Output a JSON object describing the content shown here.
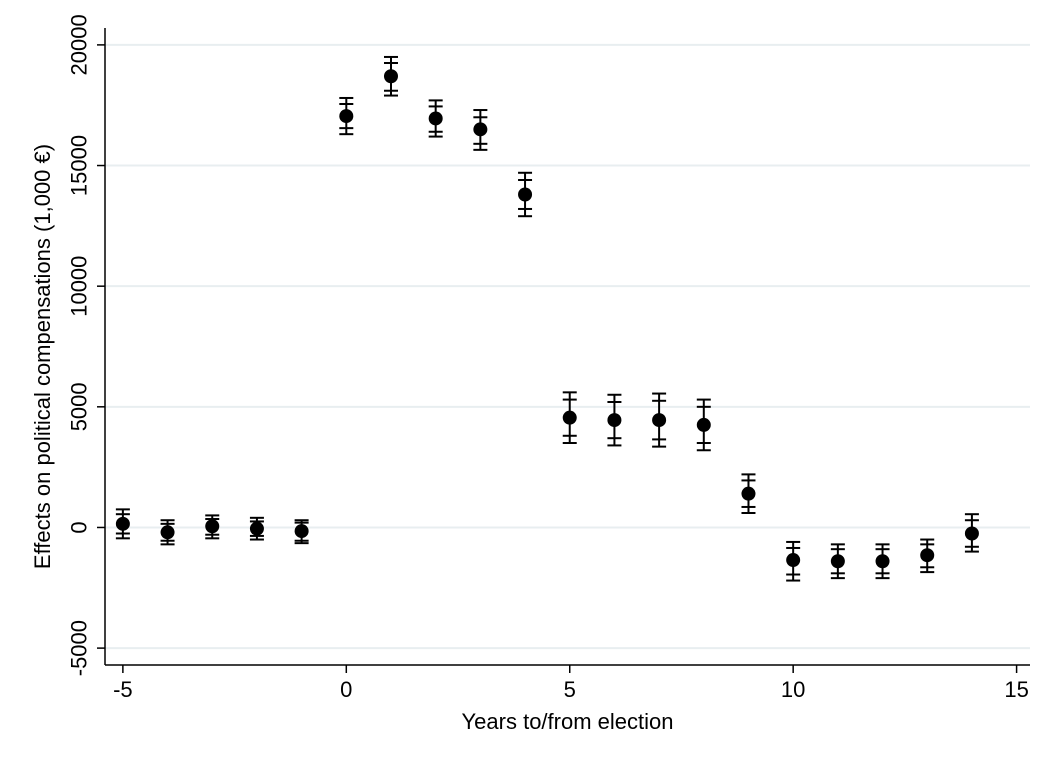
{
  "chart_data": {
    "type": "scatter",
    "title": "",
    "xlabel": "Years to/from election",
    "ylabel": "Effects on political compensations (1,000 €)",
    "xlim": [
      -5.4,
      15.3
    ],
    "ylim": [
      -5700,
      20700
    ],
    "xticks": [
      "-5",
      "0",
      "5",
      "10",
      "15"
    ],
    "yticks": [
      "-5000",
      "0",
      "5000",
      "10000",
      "15000",
      "20000"
    ],
    "grid": true,
    "points": [
      {
        "x": -5,
        "y": 150,
        "ci_inner": [
          -250,
          550
        ],
        "ci_outer": [
          -450,
          750
        ]
      },
      {
        "x": -4,
        "y": -200,
        "ci_inner": [
          -550,
          150
        ],
        "ci_outer": [
          -700,
          300
        ]
      },
      {
        "x": -3,
        "y": 50,
        "ci_inner": [
          -300,
          350
        ],
        "ci_outer": [
          -450,
          500
        ]
      },
      {
        "x": -2,
        "y": -50,
        "ci_inner": [
          -350,
          250
        ],
        "ci_outer": [
          -500,
          400
        ]
      },
      {
        "x": -1,
        "y": -150,
        "ci_inner": [
          -550,
          200
        ],
        "ci_outer": [
          -650,
          300
        ]
      },
      {
        "x": 0,
        "y": 17050,
        "ci_inner": [
          16550,
          17550
        ],
        "ci_outer": [
          16300,
          17800
        ]
      },
      {
        "x": 1,
        "y": 18700,
        "ci_inner": [
          18100,
          19250
        ],
        "ci_outer": [
          17900,
          19500
        ]
      },
      {
        "x": 2,
        "y": 16950,
        "ci_inner": [
          16400,
          17450
        ],
        "ci_outer": [
          16200,
          17700
        ]
      },
      {
        "x": 3,
        "y": 16500,
        "ci_inner": [
          15900,
          17000
        ],
        "ci_outer": [
          15650,
          17300
        ]
      },
      {
        "x": 4,
        "y": 13800,
        "ci_inner": [
          13200,
          14400
        ],
        "ci_outer": [
          12900,
          14700
        ]
      },
      {
        "x": 5,
        "y": 4550,
        "ci_inner": [
          3800,
          5300
        ],
        "ci_outer": [
          3500,
          5600
        ]
      },
      {
        "x": 6,
        "y": 4450,
        "ci_inner": [
          3700,
          5200
        ],
        "ci_outer": [
          3400,
          5500
        ]
      },
      {
        "x": 7,
        "y": 4450,
        "ci_inner": [
          3650,
          5250
        ],
        "ci_outer": [
          3350,
          5550
        ]
      },
      {
        "x": 8,
        "y": 4250,
        "ci_inner": [
          3500,
          5000
        ],
        "ci_outer": [
          3200,
          5300
        ]
      },
      {
        "x": 9,
        "y": 1400,
        "ci_inner": [
          850,
          1950
        ],
        "ci_outer": [
          600,
          2200
        ]
      },
      {
        "x": 10,
        "y": -1350,
        "ci_inner": [
          -1950,
          -850
        ],
        "ci_outer": [
          -2200,
          -600
        ]
      },
      {
        "x": 11,
        "y": -1400,
        "ci_inner": [
          -1900,
          -900
        ],
        "ci_outer": [
          -2100,
          -700
        ]
      },
      {
        "x": 12,
        "y": -1400,
        "ci_inner": [
          -1900,
          -900
        ],
        "ci_outer": [
          -2100,
          -700
        ]
      },
      {
        "x": 13,
        "y": -1150,
        "ci_inner": [
          -1650,
          -700
        ],
        "ci_outer": [
          -1850,
          -500
        ]
      },
      {
        "x": 14,
        "y": -250,
        "ci_inner": [
          -800,
          300
        ],
        "ci_outer": [
          -1000,
          550
        ]
      }
    ],
    "colors": {
      "marker": "#000000",
      "grid": "#e8eef0",
      "axis": "#000000"
    }
  }
}
